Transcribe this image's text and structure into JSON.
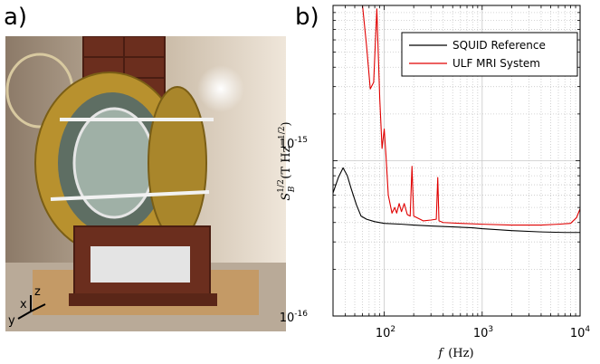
{
  "panel_labels": {
    "a": "a)",
    "b": "b)"
  },
  "photo": {
    "axes": {
      "z": "z",
      "x": "x",
      "y": "y"
    }
  },
  "chart_data": {
    "type": "line",
    "xscale": "log",
    "yscale": "log",
    "xlim": [
      30,
      10000
    ],
    "ylim": [
      1e-16,
      1e-14
    ],
    "xticks": [
      100,
      1000,
      10000
    ],
    "xtick_labels": [
      {
        "base": "10",
        "exp": "2"
      },
      {
        "base": "10",
        "exp": "3"
      },
      {
        "base": "10",
        "exp": "4"
      }
    ],
    "yticks": [
      1e-16,
      1e-15
    ],
    "ytick_labels": [
      {
        "base": "10",
        "exp": "-16"
      },
      {
        "base": "10",
        "exp": "-15"
      }
    ],
    "xlabel": {
      "sym": "f",
      "unit": "(Hz)"
    },
    "ylabel": {
      "sym": "S",
      "sub": "B",
      "sup": "1/2",
      "unit": "(T Hz",
      "unit_exp": "−1/2",
      "close": ")"
    },
    "grid": true,
    "legend_position": "top-right",
    "colors": {
      "reference": "#000000",
      "system": "#e00000",
      "grid": "#c8c8c8"
    },
    "series": [
      {
        "name": "SQUID Reference",
        "points": [
          [
            30,
            6.2e-16
          ],
          [
            34,
            7.8e-16
          ],
          [
            38,
            9e-16
          ],
          [
            42,
            8e-16
          ],
          [
            46,
            6.6e-16
          ],
          [
            52,
            5.2e-16
          ],
          [
            58,
            4.4e-16
          ],
          [
            66,
            4.2e-16
          ],
          [
            80,
            4.05e-16
          ],
          [
            100,
            3.95e-16
          ],
          [
            150,
            3.9e-16
          ],
          [
            200,
            3.85e-16
          ],
          [
            300,
            3.8e-16
          ],
          [
            500,
            3.75e-16
          ],
          [
            800,
            3.7e-16
          ],
          [
            1000,
            3.65e-16
          ],
          [
            2000,
            3.55e-16
          ],
          [
            4000,
            3.48e-16
          ],
          [
            7000,
            3.45e-16
          ],
          [
            10000,
            3.45e-16
          ]
        ]
      },
      {
        "name": "ULF MRI System",
        "points": [
          [
            60,
            1e-14
          ],
          [
            66,
            5.5e-15
          ],
          [
            72,
            2.9e-15
          ],
          [
            78,
            3.2e-15
          ],
          [
            84,
            9.5e-15
          ],
          [
            90,
            2.5e-15
          ],
          [
            95,
            1.2e-15
          ],
          [
            100,
            1.6e-15
          ],
          [
            104,
            1.1e-15
          ],
          [
            110,
            6e-16
          ],
          [
            120,
            4.6e-16
          ],
          [
            128,
            5e-16
          ],
          [
            134,
            4.6e-16
          ],
          [
            142,
            5.3e-16
          ],
          [
            150,
            4.7e-16
          ],
          [
            160,
            5.3e-16
          ],
          [
            172,
            4.5e-16
          ],
          [
            184,
            4.4e-16
          ],
          [
            192,
            9.2e-16
          ],
          [
            200,
            4.4e-16
          ],
          [
            250,
            4.1e-16
          ],
          [
            300,
            4.15e-16
          ],
          [
            340,
            4.2e-16
          ],
          [
            352,
            7.8e-16
          ],
          [
            362,
            4.1e-16
          ],
          [
            400,
            4e-16
          ],
          [
            600,
            3.95e-16
          ],
          [
            1000,
            3.9e-16
          ],
          [
            2000,
            3.85e-16
          ],
          [
            4000,
            3.85e-16
          ],
          [
            6000,
            3.9e-16
          ],
          [
            8000,
            3.95e-16
          ],
          [
            9200,
            4.3e-16
          ],
          [
            10000,
            4.9e-16
          ]
        ]
      }
    ]
  }
}
